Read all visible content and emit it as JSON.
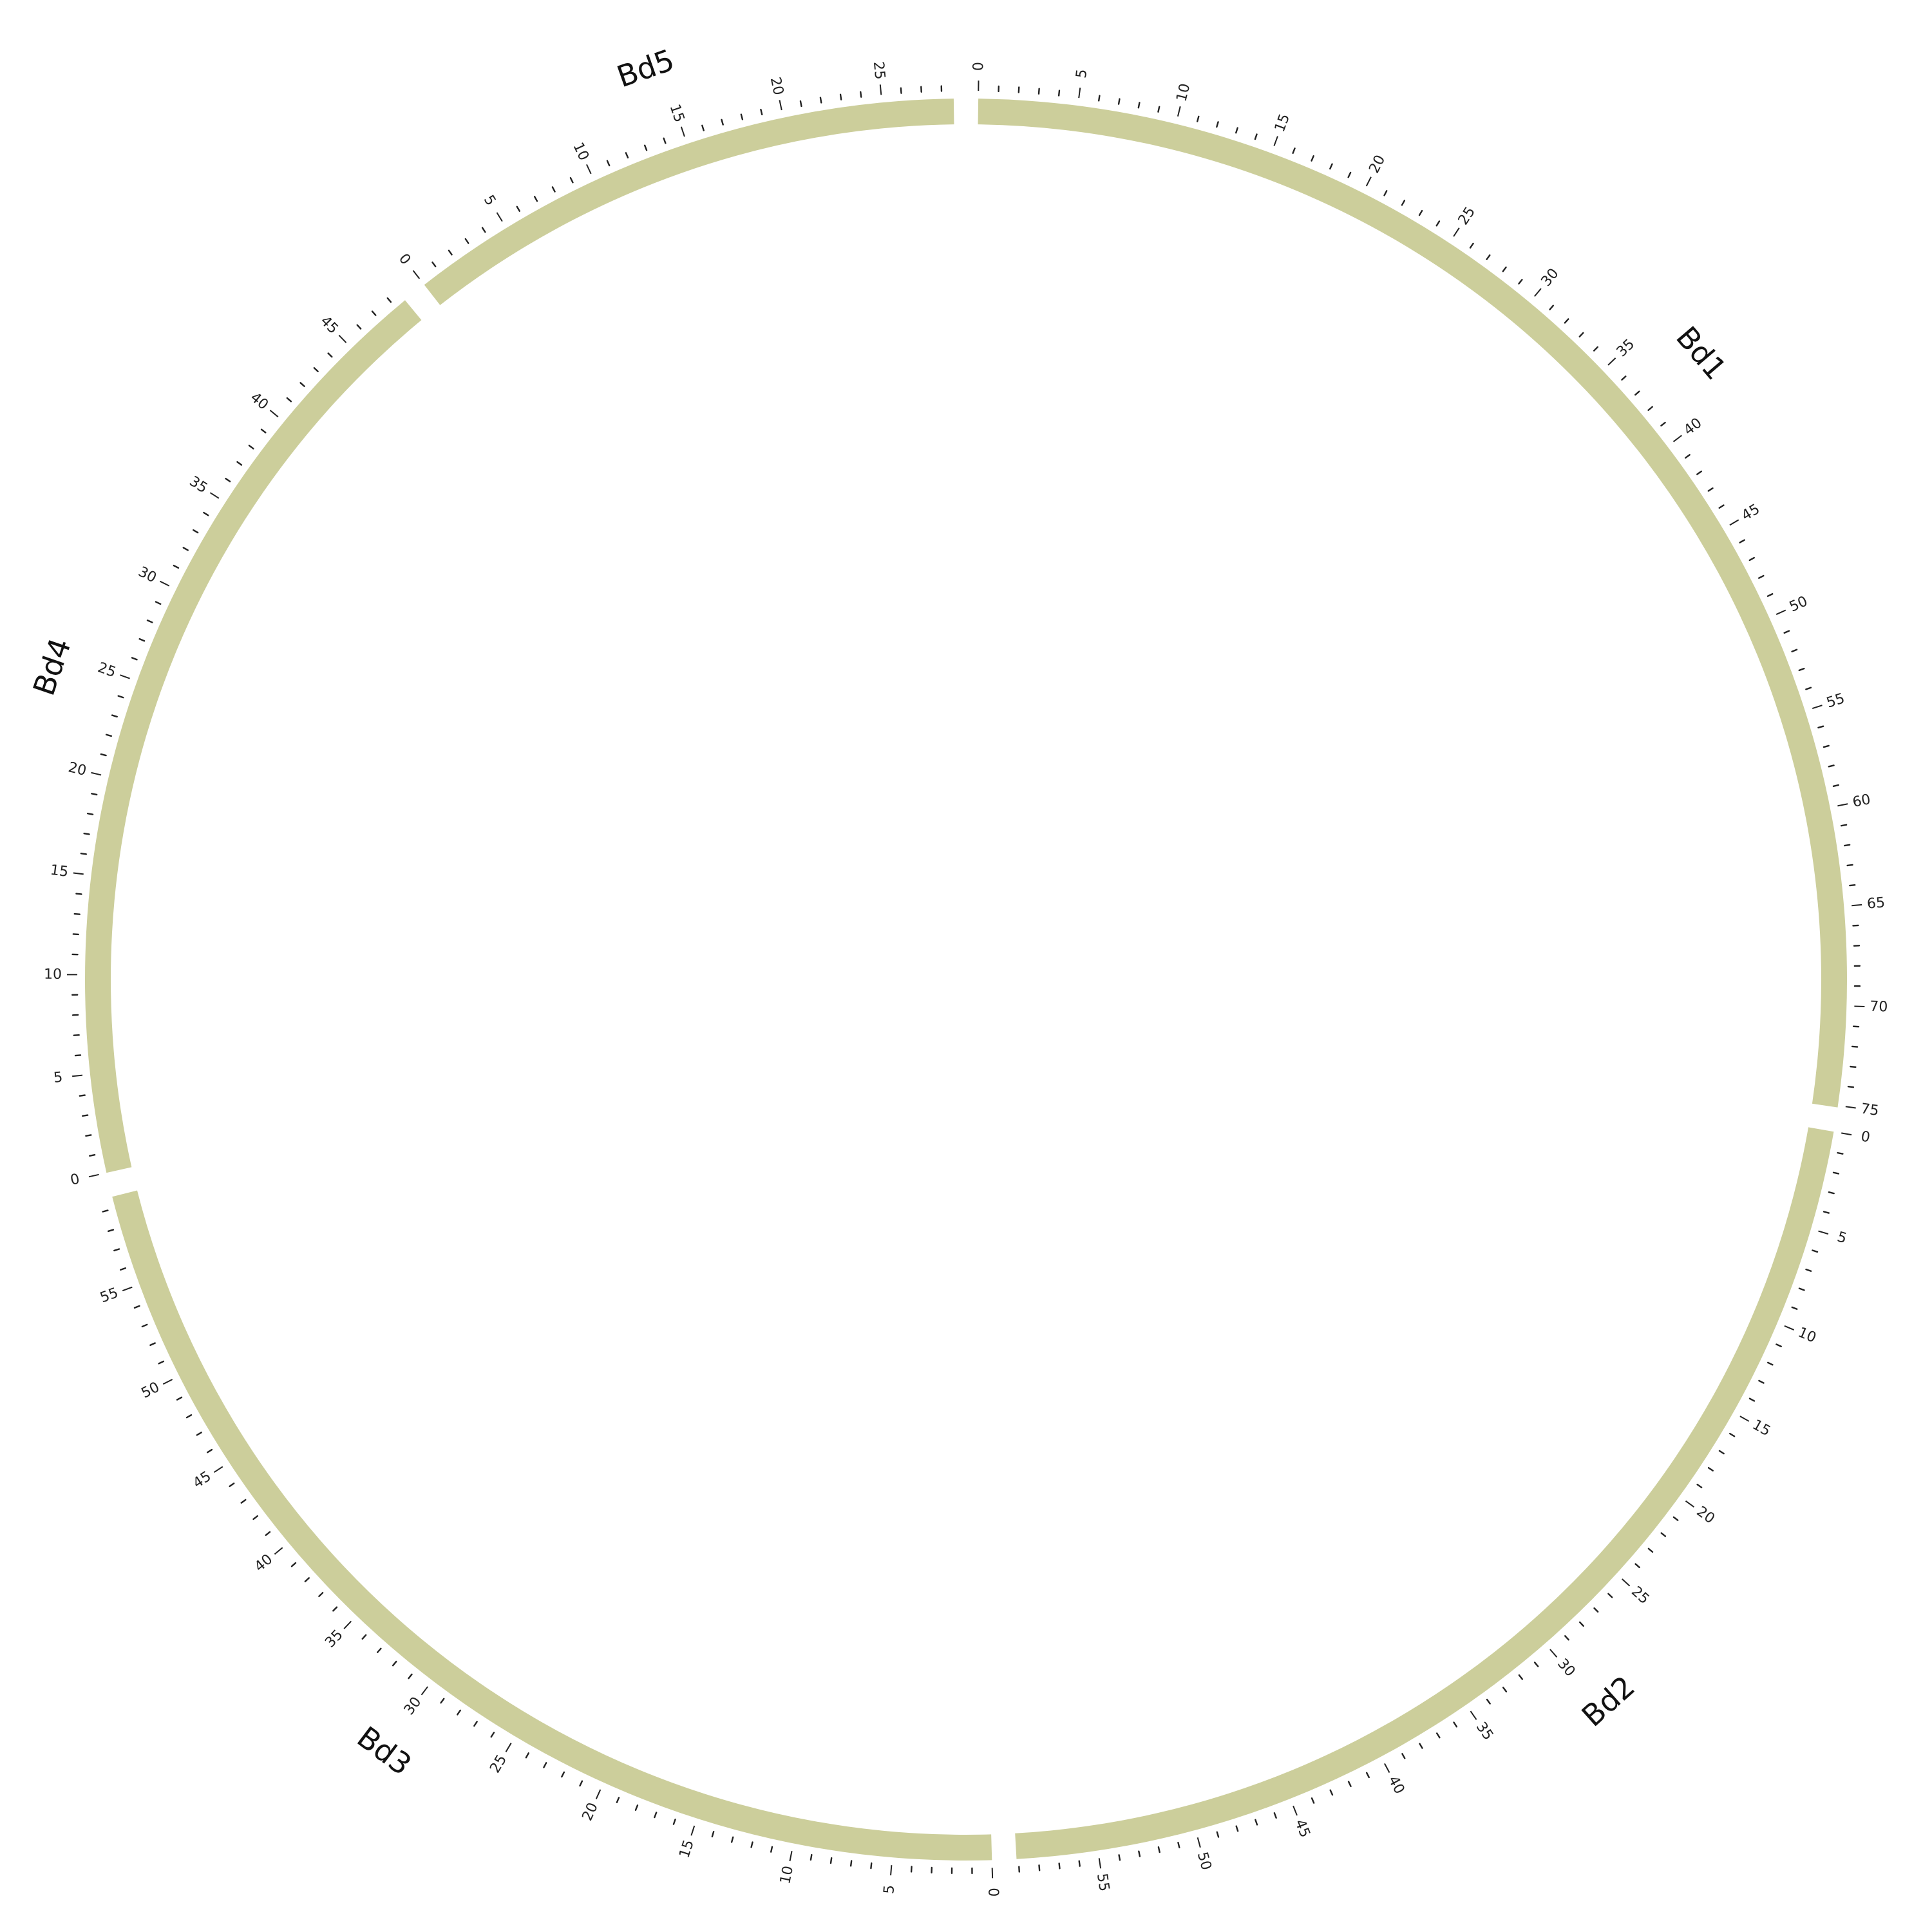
{
  "chart_data": {
    "type": "circos",
    "units": "Mb",
    "major_tick_interval": 5,
    "minor_tick_interval": 1,
    "colors": {
      "ideogram": "#CCCE9B",
      "tick": "#222222",
      "text": "#111111"
    },
    "chromosomes": [
      {
        "name": "Bd1",
        "length": 75.1
      },
      {
        "name": "Bd2",
        "length": 59.1
      },
      {
        "name": "Bd3",
        "length": 59.6
      },
      {
        "name": "Bd4",
        "length": 48.6
      },
      {
        "name": "Bd5",
        "length": 28.6
      }
    ]
  }
}
